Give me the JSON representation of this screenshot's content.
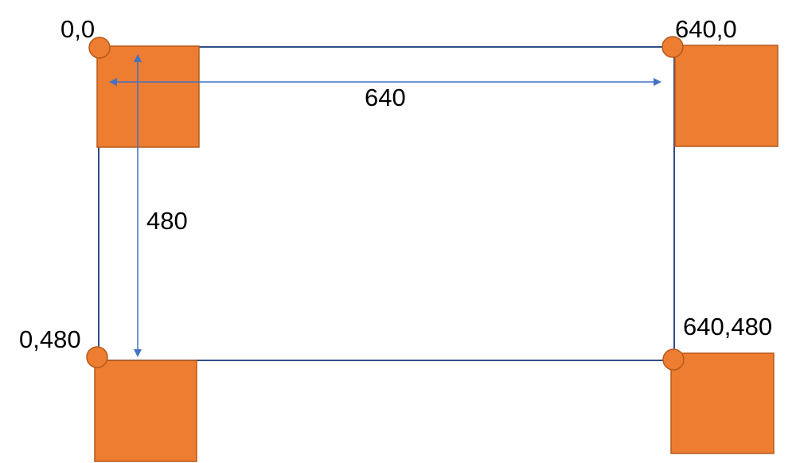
{
  "diagram": {
    "corners": {
      "top_left": "0,0",
      "top_right": "640,0",
      "bottom_left": "0,480",
      "bottom_right": "640,480"
    },
    "dimensions": {
      "width": "640",
      "height": "480"
    }
  },
  "colors": {
    "square_fill": "#ED7D31",
    "square_stroke": "#B65A1B",
    "rect_stroke": "#2F4E8A",
    "arrow": "#4472C4",
    "text": "#000000"
  }
}
